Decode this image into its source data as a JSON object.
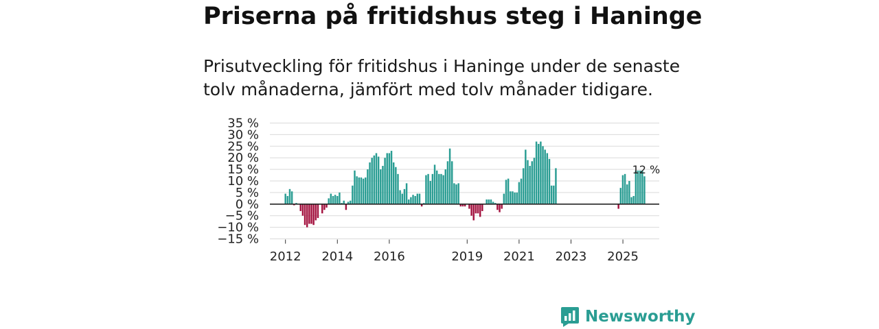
{
  "header": {
    "title": "Priserna på fritidshus steg i Haninge",
    "subtitle": "Prisutveckling för fritidshus i Haninge under de senaste tolv månaderna, jämfört med tolv månader tidigare."
  },
  "brand": {
    "name": "Newsworthy",
    "icon": "newsworthy-logo-icon"
  },
  "colors": {
    "positive": "#2a9d93",
    "negative": "#a3123f",
    "zero_line": "#222222",
    "grid": "#d9d9d9",
    "brand": "#2a9d93"
  },
  "chart_data": {
    "type": "bar",
    "title": "",
    "xlabel": "",
    "ylabel": "",
    "ylim": [
      -15,
      35
    ],
    "y_ticks": [
      -15,
      -10,
      -5,
      0,
      5,
      10,
      15,
      20,
      25,
      30,
      35
    ],
    "y_tick_labels": [
      "−15 %",
      "−10 %",
      "−5 %",
      "0 %",
      "5 %",
      "10 %",
      "15 %",
      "20 %",
      "25 %",
      "30 %",
      "35 %"
    ],
    "x_range": [
      2011.4,
      2026.4
    ],
    "x_ticks": [
      2012,
      2014,
      2016,
      2019,
      2021,
      2023,
      2025
    ],
    "x_tick_labels": [
      "2012",
      "2014",
      "2016",
      "2019",
      "2021",
      "2023",
      "2025"
    ],
    "grid": true,
    "annotation": {
      "text": "12 %",
      "x": 2025.79,
      "y": 12
    },
    "bar_interval_months": 1,
    "segments": [
      {
        "start": 2012.0,
        "values": [
          4.5,
          3.5,
          6.5,
          5.5,
          -0.5,
          0.5,
          0,
          -3,
          -5,
          -9,
          -10,
          -8.5,
          -8.5,
          -9,
          -7,
          -6,
          0,
          -4,
          -2.5,
          -1.5,
          2.5,
          4.5,
          3.5,
          4,
          3.5,
          5,
          0.5,
          1.5,
          -2.5,
          1,
          1.5,
          8,
          14.5,
          12,
          11.5,
          11.5,
          11,
          11.5,
          15,
          18,
          20,
          21,
          22,
          20.5,
          15,
          16.5,
          20,
          22,
          22,
          23,
          18,
          16,
          13,
          6,
          4.5,
          6.5,
          9,
          2,
          3,
          4,
          3.5,
          4.5,
          4.5,
          -1,
          0.5,
          12.5,
          13,
          10,
          13,
          17,
          14.5,
          13,
          13,
          12.5,
          15,
          18.5,
          24,
          18.5,
          9,
          8.5,
          9
        ]
      },
      {
        "start": 2018.75,
        "values": [
          -1,
          -1,
          -1,
          0,
          -2,
          -5,
          -7,
          -4,
          -4,
          -5.5,
          -3,
          0,
          2,
          2,
          2,
          1,
          0.5,
          -2.5,
          -3.5,
          -2,
          4.5,
          10.5,
          11,
          5.5,
          5.5,
          5,
          5,
          9.5,
          11,
          15.5,
          23.5,
          19,
          16.5,
          18.5,
          20,
          27,
          26,
          27,
          25,
          23.5,
          22,
          19.5,
          8,
          8,
          15.5
        ]
      },
      {
        "start": 2024.83,
        "values": [
          -2,
          7,
          12.5,
          13,
          8.5,
          10,
          3,
          3.5,
          14.5,
          14.5,
          14.5,
          14.5,
          12
        ]
      }
    ]
  }
}
